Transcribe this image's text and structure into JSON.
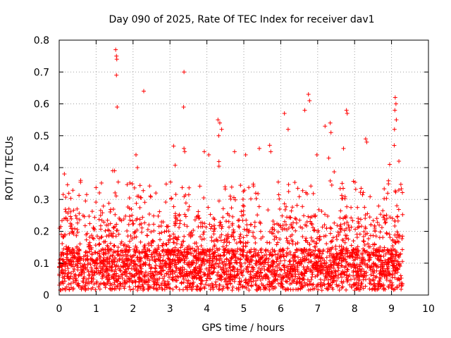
{
  "chart_data": {
    "type": "scatter",
    "title": "Day 090 of 2025, Rate Of TEC Index for receiver dav1",
    "xlabel": "GPS time / hours",
    "ylabel": "ROTI / TECUs",
    "xlim": [
      0,
      10
    ],
    "ylim": [
      0,
      0.8
    ],
    "x_ticks": [
      "0",
      "1",
      "2",
      "3",
      "4",
      "5",
      "6",
      "7",
      "8",
      "9",
      "10"
    ],
    "y_ticks": [
      "0",
      "0.1",
      "0.2",
      "0.3",
      "0.4",
      "0.5",
      "0.6",
      "0.7",
      "0.8"
    ],
    "grid": true,
    "marker": "+",
    "color": "#ff0000",
    "x_extent_hours": [
      0.0,
      9.3
    ],
    "series": [
      {
        "points": [
          [
            1.53,
            0.77
          ],
          [
            1.55,
            0.75
          ],
          [
            1.56,
            0.74
          ],
          [
            1.55,
            0.69
          ],
          [
            1.57,
            0.59
          ],
          [
            2.29,
            0.64
          ],
          [
            3.38,
            0.7
          ],
          [
            3.37,
            0.59
          ],
          [
            3.38,
            0.46
          ],
          [
            6.1,
            0.57
          ],
          [
            6.2,
            0.52
          ],
          [
            6.75,
            0.63
          ],
          [
            6.78,
            0.61
          ],
          [
            6.65,
            0.58
          ],
          [
            7.78,
            0.58
          ],
          [
            7.8,
            0.57
          ],
          [
            7.2,
            0.53
          ],
          [
            7.34,
            0.54
          ],
          [
            7.36,
            0.51
          ],
          [
            9.1,
            0.62
          ],
          [
            9.12,
            0.6
          ],
          [
            9.09,
            0.58
          ],
          [
            9.13,
            0.55
          ],
          [
            9.08,
            0.52
          ],
          [
            4.3,
            0.55
          ],
          [
            4.35,
            0.54
          ],
          [
            4.4,
            0.52
          ],
          [
            4.32,
            0.5
          ],
          [
            8.3,
            0.49
          ],
          [
            8.33,
            0.48
          ],
          [
            5.7,
            0.47
          ],
          [
            5.73,
            0.45
          ],
          [
            5.42,
            0.46
          ],
          [
            0.14,
            0.38
          ],
          [
            1.45,
            0.39
          ],
          [
            1.5,
            0.39
          ],
          [
            2.08,
            0.44
          ],
          [
            2.12,
            0.4
          ],
          [
            3.4,
            0.45
          ],
          [
            3.93,
            0.45
          ],
          [
            4.05,
            0.44
          ],
          [
            4.75,
            0.45
          ],
          [
            5.05,
            0.44
          ],
          [
            6.98,
            0.44
          ],
          [
            7.3,
            0.43
          ],
          [
            7.7,
            0.46
          ],
          [
            8.95,
            0.41
          ],
          [
            9.2,
            0.42
          ]
        ]
      }
    ]
  }
}
